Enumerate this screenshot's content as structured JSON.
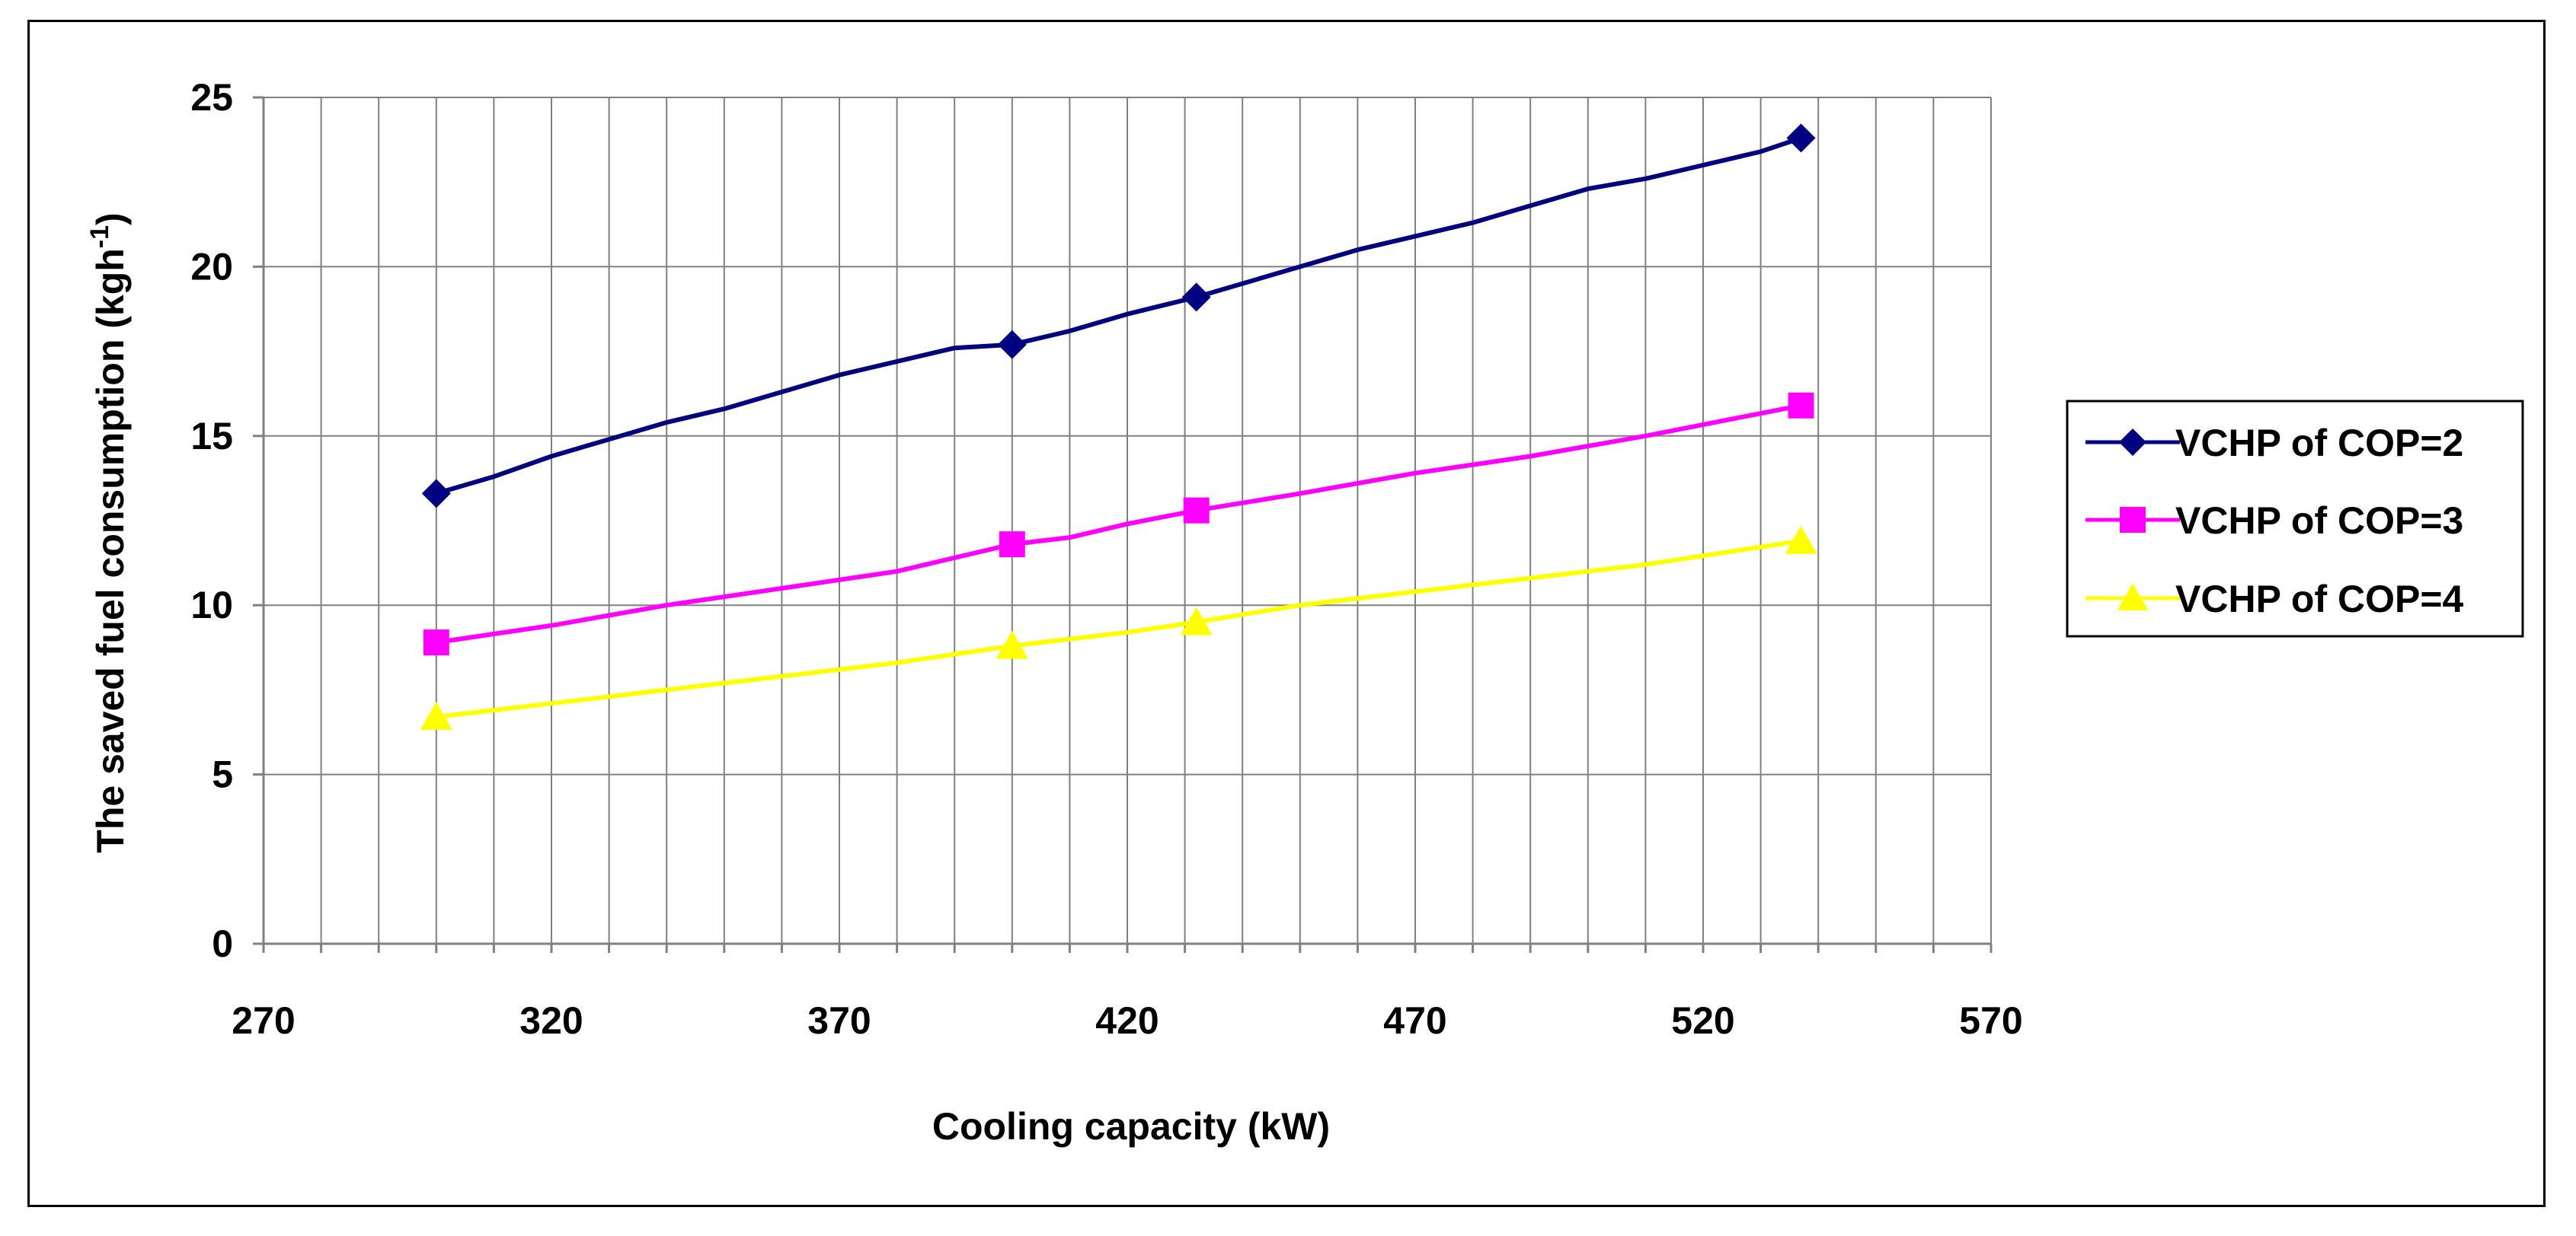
{
  "chart_data": {
    "type": "line",
    "title": "",
    "xlabel": "Cooling capacity (kW)",
    "ylabel_main": "The saved fuel consumption (kgh",
    "ylabel_sup": "-1",
    "ylabel_close": ")",
    "xlim": [
      270,
      570
    ],
    "ylim": [
      0,
      25
    ],
    "x_ticks": [
      "270",
      "320",
      "370",
      "420",
      "470",
      "520",
      "570"
    ],
    "y_ticks": [
      "0",
      "5",
      "10",
      "15",
      "20",
      "25"
    ],
    "x_minor_step": 10,
    "grid": true,
    "legend_position": "right",
    "series": [
      {
        "name": "VCHP of COP=2",
        "color": "#000080",
        "marker": "diamond",
        "x": [
          300,
          310,
          320,
          330,
          340,
          350,
          360,
          370,
          380,
          390,
          400,
          410,
          420,
          432,
          440,
          450,
          460,
          470,
          480,
          490,
          500,
          510,
          520,
          530,
          537
        ],
        "y": [
          13.3,
          13.8,
          14.4,
          14.9,
          15.4,
          15.8,
          16.3,
          16.8,
          17.2,
          17.6,
          17.7,
          18.1,
          18.6,
          19.1,
          19.5,
          20.0,
          20.5,
          20.9,
          21.3,
          21.8,
          22.3,
          22.6,
          23.0,
          23.4,
          23.8
        ],
        "marker_x": [
          300,
          400,
          432,
          537
        ],
        "marker_y": [
          13.3,
          17.7,
          19.1,
          23.8
        ]
      },
      {
        "name": "VCHP of COP=3",
        "color": "#FF00FF",
        "marker": "square",
        "x": [
          300,
          320,
          340,
          360,
          380,
          400,
          410,
          420,
          432,
          450,
          470,
          490,
          510,
          537
        ],
        "y": [
          8.9,
          9.4,
          10.0,
          10.5,
          11.0,
          11.8,
          12.0,
          12.4,
          12.8,
          13.3,
          13.9,
          14.4,
          15.0,
          15.9
        ],
        "marker_x": [
          300,
          400,
          432,
          537
        ],
        "marker_y": [
          8.9,
          11.8,
          12.8,
          15.9
        ]
      },
      {
        "name": "VCHP of COP=4",
        "color": "#FFFF00",
        "marker": "triangle",
        "x": [
          300,
          320,
          340,
          360,
          380,
          400,
          410,
          420,
          432,
          450,
          470,
          490,
          510,
          537
        ],
        "y": [
          6.7,
          7.1,
          7.5,
          7.9,
          8.3,
          8.8,
          9.0,
          9.2,
          9.5,
          10.0,
          10.4,
          10.8,
          11.2,
          11.9
        ],
        "marker_x": [
          300,
          400,
          432,
          537
        ],
        "marker_y": [
          6.7,
          8.8,
          9.5,
          11.9
        ]
      }
    ]
  }
}
